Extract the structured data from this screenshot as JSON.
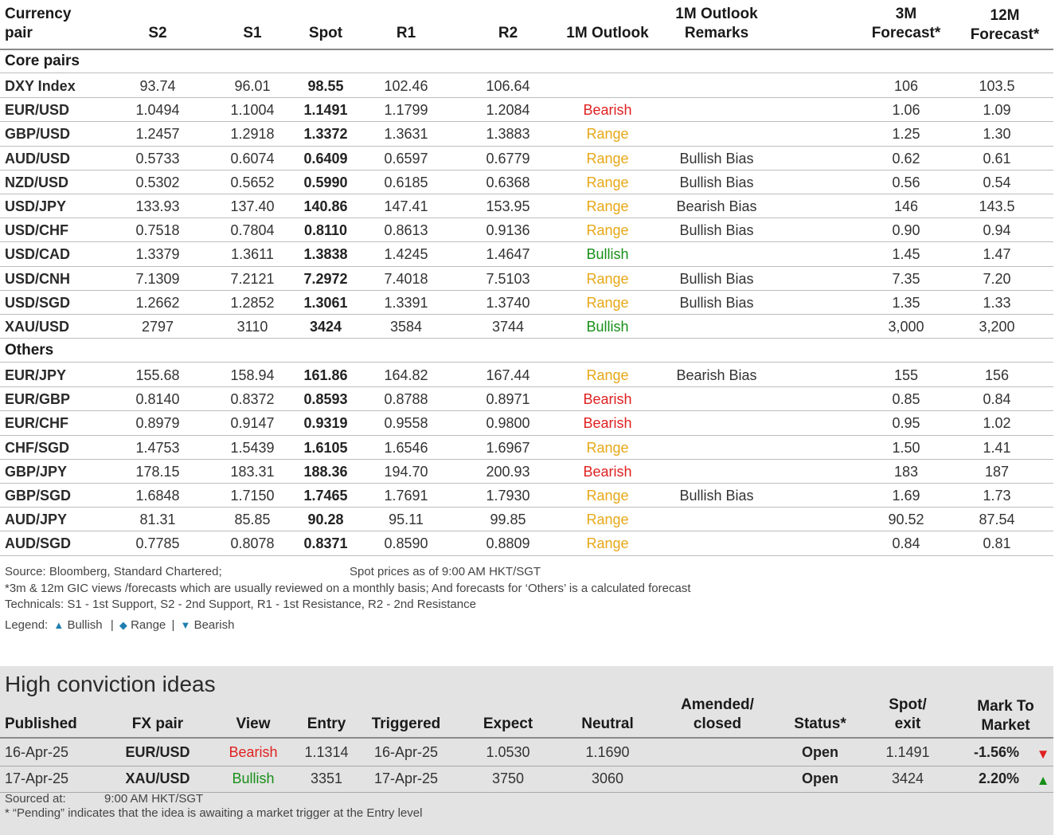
{
  "headers": {
    "pair_line1": "Currency",
    "pair_line2": "pair",
    "s2": "S2",
    "s1": "S1",
    "spot": "Spot",
    "r1": "R1",
    "r2": "R2",
    "outlook": "1M Outlook",
    "remarks_line1": "1M Outlook",
    "remarks_line2": "Remarks",
    "f3m_line1": "3M",
    "f3m_line2": "Forecast*",
    "f12m_line1": "12M",
    "f12m_line2": "Forecast*"
  },
  "sections": {
    "core": "Core pairs",
    "others": "Others"
  },
  "core_rows": [
    {
      "pair": "DXY Index",
      "s2": "93.74",
      "s1": "96.01",
      "spot": "98.55",
      "r1": "102.46",
      "r2": "106.64",
      "outlook": "",
      "remarks": "",
      "f3m": "106",
      "f12m": "103.5"
    },
    {
      "pair": "EUR/USD",
      "s2": "1.0494",
      "s1": "1.1004",
      "spot": "1.1491",
      "r1": "1.1799",
      "r2": "1.2084",
      "outlook": "Bearish",
      "remarks": "",
      "f3m": "1.06",
      "f12m": "1.09"
    },
    {
      "pair": "GBP/USD",
      "s2": "1.2457",
      "s1": "1.2918",
      "spot": "1.3372",
      "r1": "1.3631",
      "r2": "1.3883",
      "outlook": "Range",
      "remarks": "",
      "f3m": "1.25",
      "f12m": "1.30"
    },
    {
      "pair": "AUD/USD",
      "s2": "0.5733",
      "s1": "0.6074",
      "spot": "0.6409",
      "r1": "0.6597",
      "r2": "0.6779",
      "outlook": "Range",
      "remarks": "Bullish Bias",
      "f3m": "0.62",
      "f12m": "0.61"
    },
    {
      "pair": "NZD/USD",
      "s2": "0.5302",
      "s1": "0.5652",
      "spot": "0.5990",
      "r1": "0.6185",
      "r2": "0.6368",
      "outlook": "Range",
      "remarks": "Bullish Bias",
      "f3m": "0.56",
      "f12m": "0.54"
    },
    {
      "pair": "USD/JPY",
      "s2": "133.93",
      "s1": "137.40",
      "spot": "140.86",
      "r1": "147.41",
      "r2": "153.95",
      "outlook": "Range",
      "remarks": "Bearish Bias",
      "f3m": "146",
      "f12m": "143.5"
    },
    {
      "pair": "USD/CHF",
      "s2": "0.7518",
      "s1": "0.7804",
      "spot": "0.8110",
      "r1": "0.8613",
      "r2": "0.9136",
      "outlook": "Range",
      "remarks": "Bullish Bias",
      "f3m": "0.90",
      "f12m": "0.94"
    },
    {
      "pair": "USD/CAD",
      "s2": "1.3379",
      "s1": "1.3611",
      "spot": "1.3838",
      "r1": "1.4245",
      "r2": "1.4647",
      "outlook": "Bullish",
      "remarks": "",
      "f3m": "1.45",
      "f12m": "1.47"
    },
    {
      "pair": "USD/CNH",
      "s2": "7.1309",
      "s1": "7.2121",
      "spot": "7.2972",
      "r1": "7.4018",
      "r2": "7.5103",
      "outlook": "Range",
      "remarks": "Bullish Bias",
      "f3m": "7.35",
      "f12m": "7.20"
    },
    {
      "pair": "USD/SGD",
      "s2": "1.2662",
      "s1": "1.2852",
      "spot": "1.3061",
      "r1": "1.3391",
      "r2": "1.3740",
      "outlook": "Range",
      "remarks": "Bullish Bias",
      "f3m": "1.35",
      "f12m": "1.33"
    },
    {
      "pair": "XAU/USD",
      "s2": "2797",
      "s1": "3110",
      "spot": "3424",
      "r1": "3584",
      "r2": "3744",
      "outlook": "Bullish",
      "remarks": "",
      "f3m": "3,000",
      "f12m": "3,200"
    }
  ],
  "other_rows": [
    {
      "pair": "EUR/JPY",
      "s2": "155.68",
      "s1": "158.94",
      "spot": "161.86",
      "r1": "164.82",
      "r2": "167.44",
      "outlook": "Range",
      "remarks": "Bearish Bias",
      "f3m": "155",
      "f12m": "156"
    },
    {
      "pair": "EUR/GBP",
      "s2": "0.8140",
      "s1": "0.8372",
      "spot": "0.8593",
      "r1": "0.8788",
      "r2": "0.8971",
      "outlook": "Bearish",
      "remarks": "",
      "f3m": "0.85",
      "f12m": "0.84"
    },
    {
      "pair": "EUR/CHF",
      "s2": "0.8979",
      "s1": "0.9147",
      "spot": "0.9319",
      "r1": "0.9558",
      "r2": "0.9800",
      "outlook": "Bearish",
      "remarks": "",
      "f3m": "0.95",
      "f12m": "1.02"
    },
    {
      "pair": "CHF/SGD",
      "s2": "1.4753",
      "s1": "1.5439",
      "spot": "1.6105",
      "r1": "1.6546",
      "r2": "1.6967",
      "outlook": "Range",
      "remarks": "",
      "f3m": "1.50",
      "f12m": "1.41"
    },
    {
      "pair": "GBP/JPY",
      "s2": "178.15",
      "s1": "183.31",
      "spot": "188.36",
      "r1": "194.70",
      "r2": "200.93",
      "outlook": "Bearish",
      "remarks": "",
      "f3m": "183",
      "f12m": "187"
    },
    {
      "pair": "GBP/SGD",
      "s2": "1.6848",
      "s1": "1.7150",
      "spot": "1.7465",
      "r1": "1.7691",
      "r2": "1.7930",
      "outlook": "Range",
      "remarks": "Bullish Bias",
      "f3m": "1.69",
      "f12m": "1.73"
    },
    {
      "pair": "AUD/JPY",
      "s2": "81.31",
      "s1": "85.85",
      "spot": "90.28",
      "r1": "95.11",
      "r2": "99.85",
      "outlook": "Range",
      "remarks": "",
      "f3m": "90.52",
      "f12m": "87.54"
    },
    {
      "pair": "AUD/SGD",
      "s2": "0.7785",
      "s1": "0.8078",
      "spot": "0.8371",
      "r1": "0.8590",
      "r2": "0.8809",
      "outlook": "Range",
      "remarks": "",
      "f3m": "0.84",
      "f12m": "0.81"
    }
  ],
  "notes": {
    "source": "Source: Bloomberg, Standard Chartered;",
    "spot_time": "Spot prices as of 9:00 AM HKT/SGT",
    "forecast_note": "*3m & 12m GIC views /forecasts which are usually reviewed on a monthly basis; And forecasts for ‘Others’ is a calculated forecast",
    "technicals": "Technicals: S1 - 1st Support, S2 - 2nd Support, R1 - 1st Resistance, R2 - 2nd Resistance",
    "legend_label": "Legend:",
    "legend_bullish_symbol": "▲",
    "legend_bullish": "Bullish",
    "legend_sep1": "|",
    "legend_range_symbol": "◆",
    "legend_range": "Range",
    "legend_sep2": "|",
    "legend_bearish_symbol": "▼",
    "legend_bearish": "Bearish"
  },
  "hci": {
    "title": "High conviction ideas",
    "headers": {
      "published": "Published",
      "pair": "FX pair",
      "view": "View",
      "entry": "Entry",
      "triggered": "Triggered",
      "expect": "Expect",
      "neutral": "Neutral",
      "amended_line1": "Amended/",
      "amended_line2": "closed",
      "status": "Status*",
      "spot_line1": "Spot/",
      "spot_line2": "exit",
      "mtm_line1": "Mark To",
      "mtm_line2": "Market"
    },
    "rows": [
      {
        "published": "16-Apr-25",
        "pair": "EUR/USD",
        "view": "Bearish",
        "entry": "1.1314",
        "triggered": "16-Apr-25",
        "expect": "1.0530",
        "neutral": "1.1690",
        "amended": "",
        "status": "Open",
        "spot": "1.1491",
        "mtm": "-1.56%",
        "arrow": "▼"
      },
      {
        "published": "17-Apr-25",
        "pair": "XAU/USD",
        "view": "Bullish",
        "entry": "3351",
        "triggered": "17-Apr-25",
        "expect": "3750",
        "neutral": "3060",
        "amended": "",
        "status": "Open",
        "spot": "3424",
        "mtm": "2.20%",
        "arrow": "▲"
      }
    ],
    "sourced_label": "Sourced at:",
    "sourced_time": "9:00 AM HKT/SGT",
    "pending_note": "* “Pending” indicates that the idea is awaiting a market trigger at the Entry level"
  },
  "colors": {
    "bullish": "#178f17",
    "range": "#e6a817",
    "bearish": "#e02020",
    "legend_blue": "#1f7fb0",
    "panel_bg": "#e3e3e3"
  }
}
